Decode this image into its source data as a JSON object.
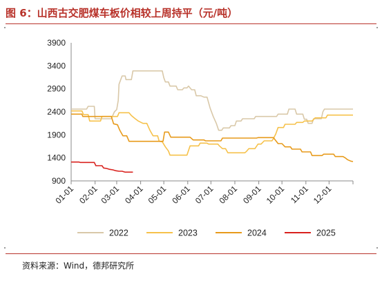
{
  "figure": {
    "title": "图 6：山西古交肥煤车板价相较上周持平（元/吨）",
    "source": "资料来源：Wind，德邦研究所"
  },
  "chart_data": {
    "type": "line",
    "xlabel": "",
    "ylabel": "",
    "ylim": [
      900,
      3900
    ],
    "yticks": [
      900,
      1400,
      1900,
      2400,
      2900,
      3400,
      3900
    ],
    "x_tick_labels": [
      "01-01",
      "02-01",
      "03-01",
      "04-01",
      "05-01",
      "06-01",
      "07-01",
      "08-01",
      "09-01",
      "10-01",
      "11-01",
      "12-01"
    ],
    "x_tick_days": [
      0,
      31,
      59,
      90,
      120,
      151,
      181,
      212,
      243,
      273,
      304,
      334
    ],
    "xlim_days": [
      0,
      365
    ],
    "legend_position": "bottom",
    "series": [
      {
        "name": "2022",
        "color": "#d9c8a8",
        "points": [
          [
            0,
            2460
          ],
          [
            20,
            2460
          ],
          [
            22,
            2520
          ],
          [
            30,
            2520
          ],
          [
            31,
            2250
          ],
          [
            52,
            2250
          ],
          [
            56,
            2400
          ],
          [
            59,
            2450
          ],
          [
            61,
            2650
          ],
          [
            62,
            3000
          ],
          [
            66,
            3180
          ],
          [
            70,
            3180
          ],
          [
            71,
            3100
          ],
          [
            78,
            3100
          ],
          [
            80,
            3290
          ],
          [
            118,
            3290
          ],
          [
            120,
            3140
          ],
          [
            122,
            3050
          ],
          [
            126,
            3050
          ],
          [
            128,
            2960
          ],
          [
            136,
            2960
          ],
          [
            138,
            2880
          ],
          [
            144,
            2880
          ],
          [
            146,
            2920
          ],
          [
            150,
            2920
          ],
          [
            152,
            2960
          ],
          [
            156,
            2880
          ],
          [
            160,
            2880
          ],
          [
            162,
            2750
          ],
          [
            168,
            2750
          ],
          [
            172,
            2720
          ],
          [
            176,
            2720
          ],
          [
            180,
            2480
          ],
          [
            184,
            2300
          ],
          [
            188,
            2150
          ],
          [
            191,
            2000
          ],
          [
            195,
            2000
          ],
          [
            197,
            2050
          ],
          [
            205,
            2050
          ],
          [
            207,
            2100
          ],
          [
            212,
            2100
          ],
          [
            214,
            2200
          ],
          [
            220,
            2200
          ],
          [
            222,
            2250
          ],
          [
            237,
            2250
          ],
          [
            239,
            2300
          ],
          [
            266,
            2300
          ],
          [
            268,
            2350
          ],
          [
            280,
            2350
          ],
          [
            282,
            2460
          ],
          [
            290,
            2460
          ],
          [
            292,
            2350
          ],
          [
            300,
            2350
          ],
          [
            302,
            2240
          ],
          [
            305,
            2240
          ],
          [
            307,
            2150
          ],
          [
            312,
            2150
          ],
          [
            314,
            2250
          ],
          [
            324,
            2250
          ],
          [
            326,
            2400
          ],
          [
            328,
            2460
          ],
          [
            365,
            2460
          ]
        ]
      },
      {
        "name": "2023",
        "color": "#f6c14a",
        "points": [
          [
            0,
            2420
          ],
          [
            14,
            2420
          ],
          [
            16,
            2340
          ],
          [
            22,
            2340
          ],
          [
            24,
            2200
          ],
          [
            38,
            2200
          ],
          [
            40,
            2300
          ],
          [
            60,
            2300
          ],
          [
            62,
            2380
          ],
          [
            75,
            2380
          ],
          [
            78,
            2320
          ],
          [
            83,
            2250
          ],
          [
            87,
            2200
          ],
          [
            93,
            2150
          ],
          [
            98,
            2150
          ],
          [
            102,
            2000
          ],
          [
            106,
            1880
          ],
          [
            112,
            1880
          ],
          [
            114,
            1760
          ],
          [
            118,
            1750
          ],
          [
            122,
            1640
          ],
          [
            126,
            1550
          ],
          [
            128,
            1460
          ],
          [
            150,
            1460
          ],
          [
            152,
            1560
          ],
          [
            154,
            1660
          ],
          [
            165,
            1660
          ],
          [
            167,
            1720
          ],
          [
            176,
            1720
          ],
          [
            178,
            1700
          ],
          [
            190,
            1700
          ],
          [
            192,
            1660
          ],
          [
            196,
            1600
          ],
          [
            200,
            1600
          ],
          [
            203,
            1510
          ],
          [
            225,
            1510
          ],
          [
            227,
            1540
          ],
          [
            230,
            1600
          ],
          [
            238,
            1600
          ],
          [
            242,
            1700
          ],
          [
            246,
            1700
          ],
          [
            250,
            1770
          ],
          [
            260,
            1770
          ],
          [
            262,
            1820
          ],
          [
            265,
            1920
          ],
          [
            268,
            2060
          ],
          [
            275,
            2060
          ],
          [
            277,
            2130
          ],
          [
            290,
            2130
          ],
          [
            292,
            2170
          ],
          [
            300,
            2170
          ],
          [
            302,
            2200
          ],
          [
            312,
            2200
          ],
          [
            316,
            2270
          ],
          [
            330,
            2270
          ],
          [
            332,
            2330
          ],
          [
            365,
            2330
          ]
        ]
      },
      {
        "name": "2024",
        "color": "#e79a1a",
        "points": [
          [
            0,
            2350
          ],
          [
            14,
            2350
          ],
          [
            15,
            2300
          ],
          [
            52,
            2300
          ],
          [
            55,
            2140
          ],
          [
            60,
            2120
          ],
          [
            63,
            2000
          ],
          [
            67,
            1880
          ],
          [
            72,
            1880
          ],
          [
            75,
            1760
          ],
          [
            119,
            1760
          ],
          [
            121,
            1960
          ],
          [
            126,
            1960
          ],
          [
            129,
            1850
          ],
          [
            154,
            1850
          ],
          [
            158,
            1790
          ],
          [
            172,
            1790
          ],
          [
            174,
            1770
          ],
          [
            194,
            1770
          ],
          [
            196,
            1830
          ],
          [
            240,
            1830
          ],
          [
            242,
            1840
          ],
          [
            262,
            1840
          ],
          [
            268,
            1710
          ],
          [
            273,
            1710
          ],
          [
            277,
            1640
          ],
          [
            284,
            1640
          ],
          [
            286,
            1590
          ],
          [
            297,
            1590
          ],
          [
            299,
            1530
          ],
          [
            310,
            1530
          ],
          [
            312,
            1450
          ],
          [
            325,
            1450
          ],
          [
            327,
            1480
          ],
          [
            340,
            1480
          ],
          [
            342,
            1430
          ],
          [
            352,
            1430
          ],
          [
            355,
            1400
          ],
          [
            358,
            1360
          ],
          [
            362,
            1330
          ],
          [
            365,
            1320
          ]
        ]
      },
      {
        "name": "2025",
        "color": "#d9211d",
        "points": [
          [
            0,
            1310
          ],
          [
            10,
            1310
          ],
          [
            12,
            1300
          ],
          [
            30,
            1300
          ],
          [
            32,
            1230
          ],
          [
            40,
            1230
          ],
          [
            42,
            1180
          ],
          [
            46,
            1170
          ],
          [
            50,
            1150
          ],
          [
            54,
            1140
          ],
          [
            58,
            1120
          ],
          [
            62,
            1110
          ],
          [
            66,
            1110
          ],
          [
            70,
            1090
          ],
          [
            80,
            1090
          ]
        ]
      }
    ]
  }
}
